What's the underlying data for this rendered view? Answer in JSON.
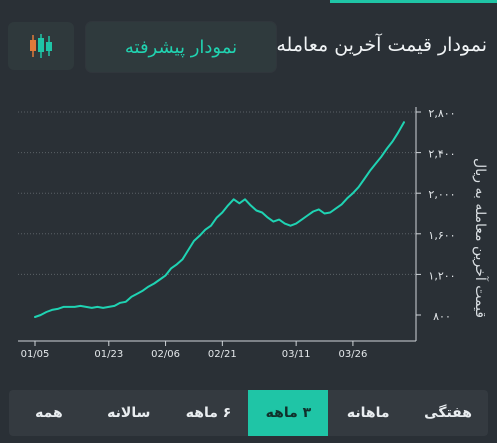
{
  "header": {
    "title": "نمودار قیمت آخرین معامله",
    "advanced_button": "نمودار پیشرفته",
    "candle_button_icon": "candlestick-icon"
  },
  "colors": {
    "accent": "#1fc5a6",
    "background": "#2a3036",
    "line": "#1fd3b3"
  },
  "tabs": [
    {
      "label": "هفتگی",
      "active": false
    },
    {
      "label": "ماهانه",
      "active": false
    },
    {
      "label": "۳ ماهه",
      "active": true
    },
    {
      "label": "۶ ماهه",
      "active": false
    },
    {
      "label": "سالانه",
      "active": false
    },
    {
      "label": "همه",
      "active": false
    }
  ],
  "chart_data": {
    "type": "line",
    "ylabel": "قیمت آخرین معامله به ریال",
    "ylim": [
      800,
      2800
    ],
    "yticks": [
      800,
      1200,
      1600,
      2000,
      2400,
      2800
    ],
    "ytick_labels": [
      "۸۰۰",
      "۱,۲۰۰",
      "۱,۶۰۰",
      "۲,۰۰۰",
      "۲,۴۰۰",
      "۲,۸۰۰"
    ],
    "x_ticks": [
      "01/05",
      "01/23",
      "02/06",
      "02/21",
      "03/11",
      "03/26"
    ],
    "x_tick_positions": [
      0,
      13,
      23,
      33,
      46,
      56
    ],
    "grid": "horizontal-dotted",
    "series": [
      {
        "x": [
          0,
          1,
          2,
          3,
          4,
          5,
          6,
          7,
          8,
          9,
          10,
          11,
          12,
          13,
          14,
          15,
          16,
          17,
          18,
          19,
          20,
          21,
          22,
          23,
          24,
          25,
          26,
          27,
          28,
          29,
          30,
          31,
          32,
          33,
          34,
          35,
          36,
          37,
          38,
          39,
          40,
          41,
          42,
          43,
          44,
          45,
          46,
          47,
          48,
          49,
          50,
          51,
          52,
          53,
          54,
          55,
          56,
          57,
          58,
          59,
          60,
          61,
          62,
          63,
          64,
          65
        ],
        "values": [
          780,
          800,
          830,
          850,
          860,
          880,
          880,
          880,
          890,
          880,
          870,
          880,
          870,
          880,
          890,
          920,
          930,
          980,
          1010,
          1040,
          1080,
          1110,
          1150,
          1190,
          1260,
          1300,
          1350,
          1440,
          1530,
          1580,
          1640,
          1680,
          1760,
          1810,
          1880,
          1940,
          1900,
          1940,
          1880,
          1830,
          1810,
          1760,
          1720,
          1740,
          1700,
          1680,
          1700,
          1740,
          1780,
          1820,
          1840,
          1800,
          1810,
          1850,
          1890,
          1950,
          2000,
          2060,
          2140,
          2220,
          2290,
          2360,
          2440,
          2510,
          2600,
          2700
        ]
      }
    ]
  }
}
